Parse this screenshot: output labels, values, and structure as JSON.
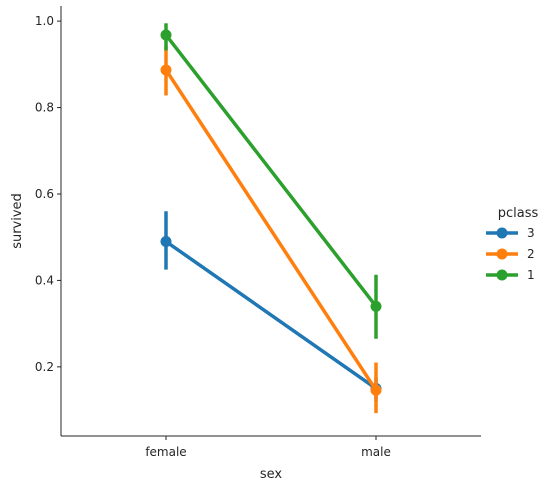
{
  "chart_data": {
    "type": "line",
    "xlabel": "sex",
    "ylabel": "survived",
    "categories": [
      "female",
      "male"
    ],
    "ylim": [
      0.04,
      1.035
    ],
    "yticks": [
      0.2,
      0.4,
      0.6,
      0.8,
      1.0
    ],
    "ytick_labels": [
      "0.2",
      "0.4",
      "0.6",
      "0.8",
      "1.0"
    ],
    "grid": false,
    "legend": {
      "title": "pclass",
      "placement": "right-outside"
    },
    "series": [
      {
        "name": "3",
        "color": "#1f77b4",
        "values": [
          0.49,
          0.15
        ],
        "ci_low": [
          0.425,
          0.12
        ],
        "ci_high": [
          0.56,
          0.175
        ]
      },
      {
        "name": "2",
        "color": "#ff7f0e",
        "values": [
          0.887,
          0.146
        ],
        "ci_low": [
          0.828,
          0.093
        ],
        "ci_high": [
          0.943,
          0.21
        ]
      },
      {
        "name": "1",
        "color": "#2ca02c",
        "values": [
          0.968,
          0.34
        ],
        "ci_low": [
          0.932,
          0.265
        ],
        "ci_high": [
          0.995,
          0.413
        ]
      }
    ]
  }
}
